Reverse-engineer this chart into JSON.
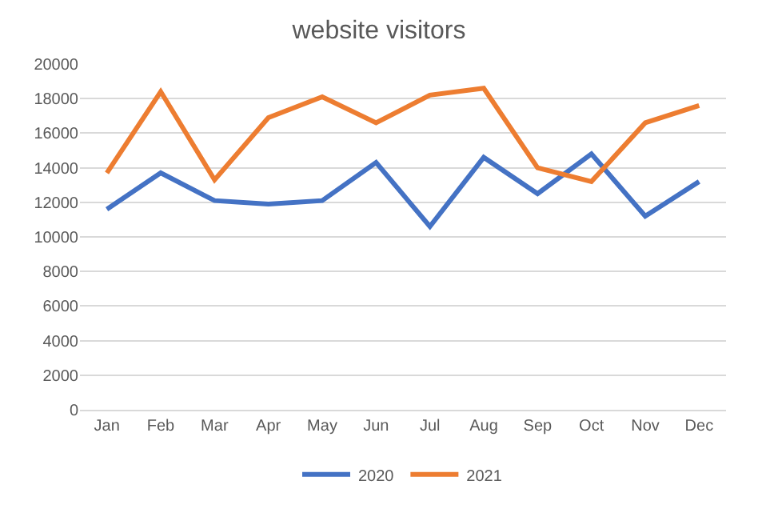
{
  "chart_data": {
    "type": "line",
    "title": "website visitors",
    "categories": [
      "Jan",
      "Feb",
      "Mar",
      "Apr",
      "May",
      "Jun",
      "Jul",
      "Aug",
      "Sep",
      "Oct",
      "Nov",
      "Dec"
    ],
    "series": [
      {
        "name": "2020",
        "color": "#4472c4",
        "values": [
          11600,
          13700,
          12100,
          11900,
          12100,
          14300,
          10600,
          14600,
          12500,
          14800,
          11200,
          13200
        ]
      },
      {
        "name": "2021",
        "color": "#ed7d31",
        "values": [
          13700,
          18400,
          13300,
          16900,
          18100,
          16600,
          18200,
          18600,
          14000,
          13200,
          16600,
          17600
        ]
      }
    ],
    "ylim": [
      0,
      20000
    ],
    "yticks": [
      0,
      2000,
      4000,
      6000,
      8000,
      10000,
      12000,
      14000,
      16000,
      18000,
      20000
    ],
    "grid": "y",
    "legend": "bottom",
    "marker": "none",
    "line_style": "solid"
  }
}
